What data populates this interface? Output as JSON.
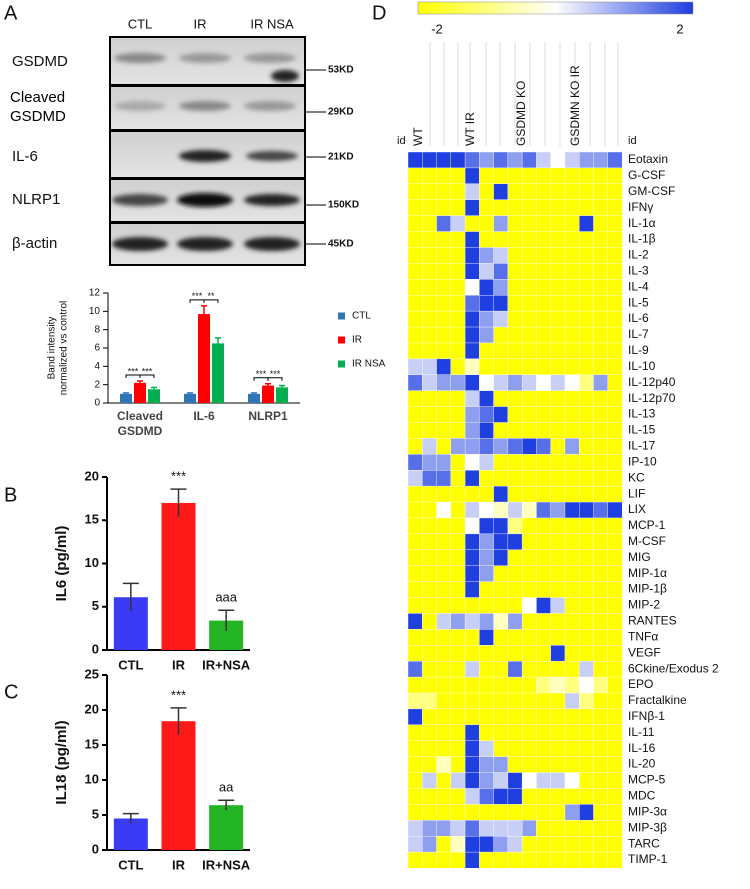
{
  "panel_labels": [
    "A",
    "B",
    "C",
    "D"
  ],
  "blot": {
    "lanes": [
      "CTL",
      "IR",
      "IR NSA"
    ],
    "rows": [
      "GSDMD",
      "Cleaved GSDMD",
      "IL-6",
      "NLRP1",
      "β-actin"
    ],
    "sizes": [
      "53KD",
      "29KD",
      "21KD",
      "150KD",
      "45KD"
    ]
  },
  "chart_data": [
    {
      "type": "bar",
      "ylabel": [
        "Band intensity",
        "normalized vs control"
      ],
      "categories": [
        "Cleaved GSDMD",
        "IL-6",
        "NLRP1"
      ],
      "series": [
        {
          "name": "CTL",
          "color": "#2e75b6",
          "values": [
            1,
            1,
            1
          ],
          "errors": [
            0.1,
            0.1,
            0.1
          ]
        },
        {
          "name": "IR",
          "color": "#ff0000",
          "values": [
            2.2,
            9.7,
            1.9
          ],
          "errors": [
            0.2,
            0.9,
            0.2
          ]
        },
        {
          "name": "IR NSA",
          "color": "#00b050",
          "values": [
            1.5,
            6.5,
            1.7
          ],
          "errors": [
            0.2,
            0.6,
            0.2
          ]
        }
      ],
      "significance": [
        "***",
        "***",
        "***",
        "**",
        "***",
        "***"
      ],
      "ylim": [
        0,
        12
      ],
      "yticks": [
        0,
        2,
        4,
        6,
        8,
        10,
        12
      ]
    },
    {
      "type": "bar",
      "ylabel": "IL6 (pg/ml)",
      "categories": [
        "CTL",
        "IR",
        "IR+NSA"
      ],
      "values": [
        6.1,
        17,
        3.4
      ],
      "errors": [
        1.6,
        1.6,
        1.2
      ],
      "colors": [
        "#3b3bf5",
        "#ff1a1a",
        "#22b422"
      ],
      "value_annotations": [
        null,
        "***",
        "aaa"
      ],
      "ylim": [
        0,
        20
      ],
      "yticks": [
        0,
        5,
        10,
        15,
        20
      ]
    },
    {
      "type": "bar",
      "ylabel": "IL18 (pg/ml)",
      "categories": [
        "CTL",
        "IR",
        "IR+NSA"
      ],
      "values": [
        4.5,
        18.4,
        6.4
      ],
      "errors": [
        0.7,
        1.9,
        0.7
      ],
      "colors": [
        "#3b3bf5",
        "#ff1a1a",
        "#22b422"
      ],
      "value_annotations": [
        null,
        "***",
        "aa"
      ],
      "ylim": [
        0,
        25
      ],
      "yticks": [
        0,
        5,
        10,
        15,
        20,
        25
      ]
    },
    {
      "type": "heatmap",
      "id_label": "id",
      "column_groups": [
        "WT",
        "WT IR",
        "GSDMD KO",
        "GSDMN KO IR"
      ],
      "zlim": [
        -2,
        2
      ],
      "zticks": [
        -2,
        2
      ],
      "colorscale": [
        "#ffff00",
        "#ffffff",
        "#1f3fe0"
      ],
      "rows": [
        "Eotaxin",
        "G-CSF",
        "GM-CSF",
        "IFNγ",
        "IL-1α",
        "IL-1β",
        "IL-2",
        "IL-3",
        "IL-4",
        "IL-5",
        "IL-6",
        "IL-7",
        "IL-9",
        "IL-10",
        "IL-12p40",
        "IL-12p70",
        "IL-13",
        "IL-15",
        "IL-17",
        "IP-10",
        "KC",
        "LIF",
        "LIX",
        "MCP-1",
        "M-CSF",
        "MIG",
        "MIP-1α",
        "MIP-1β",
        "MIP-2",
        "RANTES",
        "TNFα",
        "VEGF",
        "6Ckine/Exodus 2",
        "EPO",
        "Fractalkine",
        "IFNβ-1",
        "IL-11",
        "IL-16",
        "IL-20",
        "MCP-5",
        "MDC",
        "MIP-3α",
        "MIP-3β",
        "TARC",
        "TIMP-1"
      ],
      "values": [
        [
          2,
          2,
          2,
          2,
          1.5,
          1,
          1.5,
          1,
          1.5,
          0.5,
          0,
          0.5,
          1,
          1,
          1.5
        ],
        [
          -2,
          -2,
          -2,
          -2,
          2,
          -2,
          -2,
          -2,
          -2,
          -2,
          -2,
          -2,
          -2,
          -2,
          -2
        ],
        [
          -2,
          -2,
          -2,
          -2,
          0.5,
          -2,
          2,
          -2,
          -2,
          -2,
          -2,
          -2,
          -2,
          -2,
          -2
        ],
        [
          -2,
          -2,
          -2,
          -2,
          2,
          -2,
          -2,
          -2,
          -2,
          -2,
          -2,
          -2,
          -2,
          -2,
          -2
        ],
        [
          -2,
          -2,
          1.5,
          0.5,
          -2,
          -2,
          1,
          -2,
          -2,
          -2,
          -2,
          -2,
          2,
          -2,
          -2
        ],
        [
          -2,
          -2,
          -2,
          -2,
          2,
          -2,
          -2,
          -2,
          -2,
          -2,
          -2,
          -2,
          -2,
          -2,
          -2
        ],
        [
          -2,
          -2,
          -2,
          -2,
          2,
          1,
          0.5,
          -2,
          -2,
          -2,
          -2,
          -2,
          -2,
          -2,
          -2
        ],
        [
          -2,
          -2,
          -2,
          -2,
          2,
          0.5,
          1.5,
          -2,
          -2,
          -2,
          -2,
          -2,
          -2,
          -2,
          -2
        ],
        [
          -2,
          -2,
          -2,
          -2,
          0,
          2,
          1,
          -2,
          -2,
          -2,
          -2,
          -2,
          -2,
          -2,
          -2
        ],
        [
          -2,
          -2,
          -2,
          -2,
          1.5,
          2,
          2,
          -2,
          -2,
          -2,
          -2,
          -2,
          -2,
          -2,
          -2
        ],
        [
          -2,
          -2,
          -2,
          -2,
          2,
          1,
          0.5,
          -2,
          -2,
          -2,
          -2,
          -2,
          -2,
          -2,
          -2
        ],
        [
          -2,
          -2,
          -2,
          -2,
          2,
          1,
          -2,
          -2,
          -2,
          -2,
          -2,
          -2,
          -2,
          -2,
          -2
        ],
        [
          -2,
          -2,
          -2,
          -2,
          2,
          -2,
          -2,
          -2,
          -2,
          -2,
          -2,
          -2,
          -2,
          -2,
          -2
        ],
        [
          0.5,
          0.5,
          2,
          -2,
          -0.5,
          -2,
          -2,
          -2,
          -2,
          -2,
          -2,
          -2,
          -2,
          -2,
          -2
        ],
        [
          1.5,
          0.5,
          1,
          1,
          2,
          0,
          0.5,
          1,
          0.5,
          0,
          0.5,
          0,
          -1,
          1,
          -2
        ],
        [
          -2,
          -2,
          -2,
          -2,
          0.5,
          2,
          -2,
          -2,
          -2,
          -2,
          -2,
          -2,
          -2,
          -2,
          -2
        ],
        [
          -2,
          -2,
          -2,
          -2,
          1,
          1.5,
          2,
          -2,
          -2,
          -2,
          -2,
          -2,
          -2,
          -2,
          -2
        ],
        [
          -2,
          -2,
          -2,
          -2,
          1,
          2,
          -2,
          -2,
          -2,
          -2,
          -2,
          -2,
          -2,
          -2,
          -2
        ],
        [
          -2,
          0.5,
          -2,
          1,
          1,
          1.5,
          1,
          1.5,
          2,
          1.5,
          -2,
          1,
          -2,
          -2,
          -2
        ],
        [
          1.5,
          1,
          1,
          -2,
          0,
          0.5,
          -2,
          -2,
          -2,
          -2,
          -2,
          -2,
          -2,
          -2,
          -2
        ],
        [
          0.5,
          1.5,
          1.5,
          -2,
          2,
          -2,
          -2,
          -2,
          -2,
          -2,
          -2,
          -2,
          -2,
          -2,
          -2
        ],
        [
          -2,
          -2,
          -2,
          -2,
          -2,
          -2,
          2,
          -2,
          -2,
          -2,
          -2,
          -2,
          -2,
          -2,
          -2
        ],
        [
          -2,
          -2,
          0,
          -2,
          0.5,
          0,
          -0.5,
          0.5,
          -0.5,
          1.5,
          1,
          2,
          2,
          1.5,
          2
        ],
        [
          -2,
          -2,
          -2,
          -2,
          0,
          2,
          2,
          -1,
          -2,
          -2,
          -2,
          -2,
          -2,
          -2,
          -2
        ],
        [
          -2,
          -2,
          -2,
          -2,
          2,
          1,
          2,
          2,
          -2,
          -2,
          -2,
          -2,
          -2,
          -2,
          -2
        ],
        [
          -2,
          -2,
          -2,
          -2,
          2,
          1,
          2,
          -2,
          -2,
          -2,
          -2,
          -2,
          -2,
          -2,
          -2
        ],
        [
          -2,
          -2,
          -2,
          -2,
          2,
          1,
          -2,
          -2,
          -2,
          -2,
          -2,
          -2,
          -2,
          -2,
          -2
        ],
        [
          -2,
          -2,
          -2,
          -2,
          2,
          -2,
          -2,
          -2,
          -2,
          -2,
          -2,
          -2,
          -2,
          -2,
          -2
        ],
        [
          -2,
          -2,
          -2,
          -2,
          -2,
          -2,
          -2,
          -2,
          0,
          2,
          0.5,
          -2,
          -2,
          -2,
          -2
        ],
        [
          2,
          -2,
          0.5,
          1,
          0.5,
          1,
          -0.5,
          1,
          -2,
          -2,
          -2,
          -2,
          -2,
          -2,
          -2
        ],
        [
          -2,
          -2,
          -2,
          -2,
          -2,
          2,
          -2,
          -2,
          -2,
          -2,
          -2,
          -2,
          -2,
          -2,
          -2
        ],
        [
          -2,
          -2,
          -2,
          -2,
          -2,
          -2,
          -2,
          -2,
          -2,
          -2,
          2,
          -2,
          -2,
          -2,
          -2
        ],
        [
          1.5,
          -2,
          -2,
          -2,
          0.5,
          -2,
          -2,
          1.5,
          -2,
          -2,
          -2,
          -2,
          0.5,
          -2,
          -2
        ],
        [
          -2,
          -2,
          -2,
          -2,
          -2,
          -2,
          -2,
          -2,
          -2,
          -1,
          -0.5,
          -1,
          0,
          -1,
          -2
        ],
        [
          -1,
          -1,
          -2,
          -2,
          -2,
          -2,
          -2,
          -2,
          -2,
          -2,
          -2,
          0.5,
          -1,
          -2,
          -2
        ],
        [
          2,
          -2,
          -2,
          -2,
          -2,
          -2,
          -2,
          -2,
          -2,
          -2,
          -2,
          -2,
          -2,
          -2,
          -2
        ],
        [
          -2,
          -2,
          -2,
          -2,
          2,
          -2,
          -2,
          -2,
          -2,
          -2,
          -2,
          -2,
          -2,
          -2,
          -2
        ],
        [
          -2,
          -2,
          -2,
          -2,
          2,
          0.5,
          -2,
          -2,
          -2,
          -2,
          -2,
          -2,
          -2,
          -2,
          -2
        ],
        [
          -2,
          -2,
          -0.5,
          -2,
          2,
          1,
          1,
          -2,
          -2,
          -2,
          -2,
          -2,
          -2,
          -2,
          -2
        ],
        [
          -2,
          0.5,
          -2,
          0.5,
          2,
          1,
          0.5,
          2,
          0,
          0.5,
          0.5,
          0,
          -2,
          -2,
          -2
        ],
        [
          -2,
          -2,
          -2,
          -2,
          0.5,
          1.5,
          2,
          2,
          -2,
          -2,
          -2,
          -2,
          -2,
          -2,
          -2
        ],
        [
          -2,
          -2,
          -2,
          -2,
          -2,
          -2,
          -2,
          -2,
          -2,
          -2,
          -2,
          1,
          2,
          -2,
          -2
        ],
        [
          0.5,
          1,
          1,
          0.5,
          1.5,
          0.5,
          0.5,
          0.5,
          1,
          -2,
          -2,
          -2,
          -2,
          -2,
          -2
        ],
        [
          0.5,
          1,
          -2,
          -0.5,
          2,
          2,
          1,
          0.5,
          -2,
          -2,
          -2,
          -2,
          -2,
          -2,
          -2
        ],
        [
          -2,
          -2,
          -2,
          -2,
          2,
          -2,
          -2,
          -2,
          -2,
          -2,
          -2,
          -2,
          -2,
          -2,
          -2
        ]
      ]
    }
  ]
}
